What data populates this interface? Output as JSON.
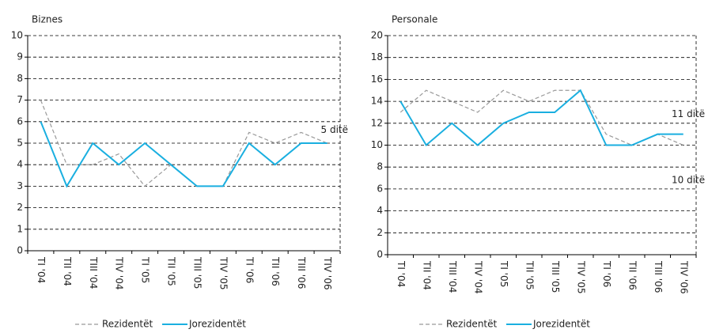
{
  "chart_data": [
    {
      "type": "line",
      "title": "Biznes",
      "categories": [
        "TI '04",
        "TII '04",
        "TIII '04",
        "TIV '04",
        "TI '05",
        "TII '05",
        "TIII '05",
        "TIV '05",
        "TI '06",
        "TII '06",
        "TIII '06",
        "TIV '06"
      ],
      "series": [
        {
          "name": "Rezidentët",
          "color": "#999999",
          "dash": true,
          "values": [
            7,
            4,
            4,
            4.5,
            3,
            4,
            3,
            3,
            5.5,
            5,
            5.5,
            5
          ]
        },
        {
          "name": "Jorezidentët",
          "color": "#1aafe0",
          "dash": false,
          "values": [
            6,
            3,
            5,
            4,
            5,
            4,
            3,
            3,
            5,
            4,
            5,
            5
          ]
        }
      ],
      "ylim": [
        0,
        10
      ],
      "yticks": [
        0,
        1,
        2,
        3,
        4,
        5,
        6,
        7,
        8,
        9,
        10
      ],
      "grid": true,
      "annotations": [
        {
          "text": "5 ditë",
          "x": 11,
          "y": 5.6
        }
      ]
    },
    {
      "type": "line",
      "title": "Personale",
      "categories": [
        "TI '04",
        "TII '04",
        "TIII '04",
        "TIV '04",
        "TI '05",
        "TII '05",
        "TIII '05",
        "TIV '05",
        "TI '06",
        "TII '06",
        "TIII '06",
        "TIV '06"
      ],
      "series": [
        {
          "name": "Rezidentët",
          "color": "#999999",
          "dash": true,
          "values": [
            13,
            15,
            14,
            13,
            15,
            14,
            15,
            15,
            11,
            10,
            11,
            10
          ]
        },
        {
          "name": "Jorezidentët",
          "color": "#1aafe0",
          "dash": false,
          "values": [
            14,
            10,
            12,
            10,
            12,
            13,
            13,
            15,
            10,
            10,
            11,
            11
          ]
        }
      ],
      "ylim": [
        0,
        20
      ],
      "yticks": [
        0,
        2,
        4,
        6,
        8,
        10,
        12,
        14,
        16,
        18,
        20
      ],
      "grid": true,
      "annotations": [
        {
          "text": "11 ditë",
          "x": 11.5,
          "y": 12.8
        },
        {
          "text": "10 ditë",
          "x": 11.5,
          "y": 6.8
        }
      ]
    }
  ]
}
